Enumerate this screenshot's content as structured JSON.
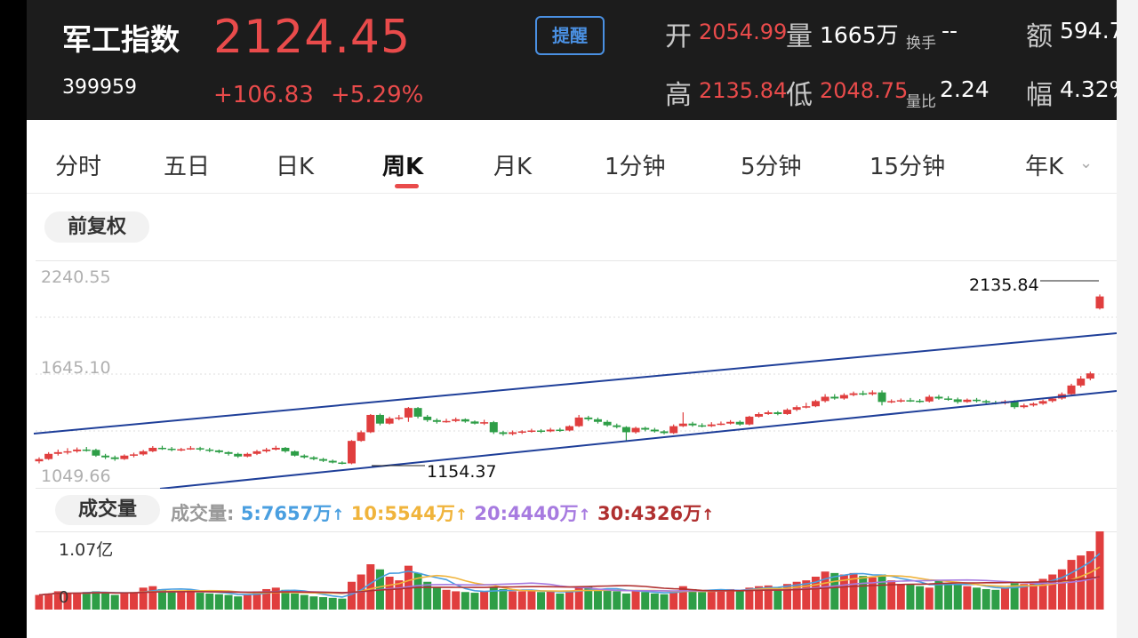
{
  "header": {
    "name": "军工指数",
    "code": "399959",
    "price": "2124.45",
    "change": "+106.83",
    "change_pct": "+5.29%",
    "alert_label": "提醒",
    "open_label": "开",
    "open_value": "2054.99",
    "volume_label": "量",
    "volume_value": "1665万",
    "turnover_label": "换手",
    "turnover_value": "--",
    "amount_label": "额",
    "amount_value": "594.7",
    "high_label": "高",
    "high_value": "2135.84",
    "low_label": "低",
    "low_value": "2048.75",
    "ratio_label": "量比",
    "ratio_value": "2.24",
    "amp_label": "幅",
    "amp_value": "4.32%"
  },
  "tabs": [
    "分时",
    "五日",
    "日K",
    "周K",
    "月K",
    "1分钟",
    "5分钟",
    "15分钟",
    "年K"
  ],
  "active_tab": "周K",
  "adjust_label": "前复权",
  "volume_panel": {
    "title": "成交量",
    "ma_prefix": "成交量:",
    "ma": [
      {
        "text": "5:7657万",
        "color": "#4a9fe0"
      },
      {
        "text": "10:5544万",
        "color": "#f0b43c"
      },
      {
        "text": "20:4440万",
        "color": "#a77be0"
      },
      {
        "text": "30:4326万",
        "color": "#b03030"
      }
    ],
    "max_label": "1.07亿",
    "zero_label": "0"
  },
  "chart_data": {
    "type": "candlestick",
    "y_ticks": [
      "2240.55",
      "1645.10",
      "1049.66"
    ],
    "ylim": [
      1049.66,
      2240.55
    ],
    "high_label": "2135.84",
    "low_label": "1154.37",
    "colors": {
      "up": "#e03e3e",
      "down": "#2e9e47",
      "channel": "#1f3f99"
    },
    "candles": [
      [
        1172,
        1185,
        1195,
        1160
      ],
      [
        1185,
        1215,
        1225,
        1180
      ],
      [
        1215,
        1225,
        1240,
        1205
      ],
      [
        1225,
        1230,
        1248,
        1212
      ],
      [
        1230,
        1240,
        1252,
        1222
      ],
      [
        1240,
        1238,
        1255,
        1228
      ],
      [
        1238,
        1205,
        1245,
        1198
      ],
      [
        1205,
        1195,
        1215,
        1185
      ],
      [
        1195,
        1185,
        1205,
        1175
      ],
      [
        1185,
        1205,
        1212,
        1180
      ],
      [
        1205,
        1212,
        1222,
        1195
      ],
      [
        1212,
        1230,
        1238,
        1205
      ],
      [
        1230,
        1250,
        1260,
        1225
      ],
      [
        1250,
        1245,
        1262,
        1238
      ],
      [
        1245,
        1238,
        1255,
        1230
      ],
      [
        1238,
        1242,
        1250,
        1230
      ],
      [
        1242,
        1248,
        1260,
        1238
      ],
      [
        1248,
        1240,
        1256,
        1232
      ],
      [
        1240,
        1235,
        1250,
        1225
      ],
      [
        1235,
        1225,
        1240,
        1218
      ],
      [
        1225,
        1215,
        1230,
        1205
      ],
      [
        1215,
        1200,
        1222,
        1192
      ],
      [
        1200,
        1215,
        1222,
        1195
      ],
      [
        1215,
        1230,
        1238,
        1208
      ],
      [
        1230,
        1240,
        1250,
        1222
      ],
      [
        1240,
        1250,
        1262,
        1235
      ],
      [
        1250,
        1230,
        1255,
        1222
      ],
      [
        1230,
        1205,
        1235,
        1200
      ],
      [
        1205,
        1195,
        1212,
        1188
      ],
      [
        1195,
        1185,
        1202,
        1178
      ],
      [
        1185,
        1175,
        1192,
        1168
      ],
      [
        1175,
        1165,
        1182,
        1160
      ],
      [
        1165,
        1160,
        1172,
        1154.37
      ],
      [
        1160,
        1290,
        1295,
        1155
      ],
      [
        1290,
        1340,
        1350,
        1285
      ],
      [
        1340,
        1440,
        1445,
        1335
      ],
      [
        1440,
        1390,
        1448,
        1380
      ],
      [
        1390,
        1420,
        1430,
        1385
      ],
      [
        1420,
        1425,
        1440,
        1410
      ],
      [
        1425,
        1480,
        1486,
        1400
      ],
      [
        1480,
        1430,
        1486,
        1420
      ],
      [
        1430,
        1410,
        1440,
        1400
      ],
      [
        1410,
        1400,
        1420,
        1390
      ],
      [
        1400,
        1405,
        1418,
        1395
      ],
      [
        1405,
        1415,
        1425,
        1398
      ],
      [
        1415,
        1402,
        1420,
        1395
      ],
      [
        1402,
        1390,
        1408,
        1385
      ],
      [
        1390,
        1398,
        1412,
        1382
      ],
      [
        1398,
        1340,
        1405,
        1330
      ],
      [
        1340,
        1330,
        1348,
        1320
      ],
      [
        1330,
        1340,
        1350,
        1322
      ],
      [
        1340,
        1345,
        1352,
        1330
      ],
      [
        1345,
        1350,
        1360,
        1338
      ],
      [
        1350,
        1345,
        1358,
        1335
      ],
      [
        1345,
        1355,
        1365,
        1340
      ],
      [
        1355,
        1350,
        1365,
        1342
      ],
      [
        1350,
        1375,
        1380,
        1345
      ],
      [
        1375,
        1425,
        1440,
        1370
      ],
      [
        1425,
        1415,
        1435,
        1405
      ],
      [
        1415,
        1400,
        1425,
        1390
      ],
      [
        1400,
        1380,
        1410,
        1372
      ],
      [
        1380,
        1370,
        1390,
        1362
      ],
      [
        1370,
        1340,
        1375,
        1290
      ],
      [
        1340,
        1365,
        1372,
        1332
      ],
      [
        1365,
        1355,
        1372,
        1345
      ],
      [
        1355,
        1345,
        1365,
        1338
      ],
      [
        1345,
        1335,
        1352,
        1328
      ],
      [
        1335,
        1375,
        1385,
        1330
      ],
      [
        1375,
        1390,
        1455,
        1370
      ],
      [
        1390,
        1380,
        1400,
        1372
      ],
      [
        1380,
        1375,
        1392,
        1368
      ],
      [
        1375,
        1385,
        1398,
        1370
      ],
      [
        1385,
        1390,
        1402,
        1380
      ],
      [
        1390,
        1400,
        1410,
        1385
      ],
      [
        1400,
        1385,
        1408,
        1378
      ],
      [
        1385,
        1430,
        1435,
        1380
      ],
      [
        1430,
        1445,
        1455,
        1425
      ],
      [
        1445,
        1455,
        1465,
        1440
      ],
      [
        1455,
        1445,
        1462,
        1438
      ],
      [
        1445,
        1470,
        1478,
        1440
      ],
      [
        1470,
        1485,
        1495,
        1462
      ],
      [
        1485,
        1490,
        1510,
        1478
      ],
      [
        1490,
        1520,
        1528,
        1485
      ],
      [
        1520,
        1545,
        1560,
        1512
      ],
      [
        1545,
        1535,
        1560,
        1528
      ],
      [
        1535,
        1555,
        1565,
        1528
      ],
      [
        1555,
        1565,
        1575,
        1548
      ],
      [
        1565,
        1560,
        1580,
        1552
      ],
      [
        1560,
        1570,
        1582,
        1552
      ],
      [
        1570,
        1515,
        1582,
        1495
      ],
      [
        1515,
        1520,
        1530,
        1508
      ],
      [
        1520,
        1525,
        1535,
        1512
      ],
      [
        1525,
        1522,
        1538,
        1515
      ],
      [
        1522,
        1518,
        1532,
        1510
      ],
      [
        1518,
        1545,
        1555,
        1512
      ],
      [
        1545,
        1535,
        1556,
        1528
      ],
      [
        1535,
        1530,
        1548,
        1522
      ],
      [
        1530,
        1515,
        1540,
        1505
      ],
      [
        1515,
        1528,
        1535,
        1510
      ],
      [
        1528,
        1520,
        1538,
        1512
      ],
      [
        1520,
        1512,
        1528,
        1505
      ],
      [
        1512,
        1508,
        1522,
        1500
      ],
      [
        1508,
        1518,
        1526,
        1500
      ],
      [
        1518,
        1485,
        1525,
        1475
      ],
      [
        1485,
        1495,
        1505,
        1478
      ],
      [
        1495,
        1505,
        1512,
        1488
      ],
      [
        1505,
        1520,
        1528,
        1498
      ],
      [
        1520,
        1535,
        1545,
        1512
      ],
      [
        1535,
        1560,
        1570,
        1528
      ],
      [
        1560,
        1610,
        1620,
        1552
      ],
      [
        1610,
        1650,
        1665,
        1600
      ],
      [
        1650,
        1680,
        1690,
        1640
      ],
      [
        2054.99,
        2124.45,
        2135.84,
        2048.75
      ]
    ],
    "volume": [
      0.2,
      0.22,
      0.25,
      0.22,
      0.23,
      0.24,
      0.25,
      0.24,
      0.2,
      0.22,
      0.24,
      0.3,
      0.32,
      0.28,
      0.26,
      0.25,
      0.27,
      0.23,
      0.22,
      0.21,
      0.2,
      0.18,
      0.21,
      0.25,
      0.28,
      0.3,
      0.27,
      0.22,
      0.2,
      0.18,
      0.17,
      0.16,
      0.15,
      0.38,
      0.48,
      0.62,
      0.55,
      0.45,
      0.4,
      0.6,
      0.5,
      0.38,
      0.3,
      0.27,
      0.25,
      0.24,
      0.23,
      0.25,
      0.3,
      0.28,
      0.25,
      0.25,
      0.26,
      0.24,
      0.25,
      0.22,
      0.25,
      0.3,
      0.32,
      0.28,
      0.27,
      0.25,
      0.22,
      0.26,
      0.24,
      0.22,
      0.21,
      0.24,
      0.32,
      0.28,
      0.24,
      0.26,
      0.27,
      0.28,
      0.27,
      0.3,
      0.32,
      0.33,
      0.3,
      0.35,
      0.38,
      0.4,
      0.45,
      0.52,
      0.5,
      0.48,
      0.5,
      0.46,
      0.44,
      0.48,
      0.4,
      0.35,
      0.34,
      0.32,
      0.3,
      0.4,
      0.36,
      0.34,
      0.32,
      0.3,
      0.28,
      0.27,
      0.3,
      0.36,
      0.35,
      0.38,
      0.42,
      0.48,
      0.55,
      0.68,
      0.74,
      0.8,
      1.07
    ],
    "volume_unit": "亿",
    "volume_ylim": [
      0,
      1.07
    ]
  }
}
